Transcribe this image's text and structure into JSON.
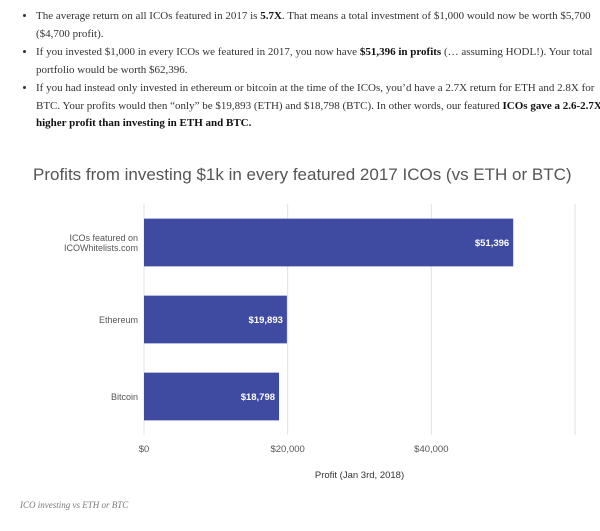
{
  "bullets": [
    {
      "segments": [
        {
          "text": "The average return on all ICOs featured in 2017 is ",
          "bold": false
        },
        {
          "text": "5.7X",
          "bold": true
        },
        {
          "text": ". That means a total investment of $1,000 would now be worth $5,700 ($4,700 profit).",
          "bold": false
        }
      ]
    },
    {
      "segments": [
        {
          "text": "If you invested $1,000 in every ICOs we featured in 2017, you now have ",
          "bold": false
        },
        {
          "text": "$51,396 in profits",
          "bold": true
        },
        {
          "text": " (… assuming HODL!). Your total portfolio would be worth $62,396.",
          "bold": false
        }
      ]
    },
    {
      "segments": [
        {
          "text": "If you had instead only invested in ethereum or bitcoin at the time of the ICOs, you’d have a 2.7X return for ETH and 2.8X for BTC. Your profits would then “only” be $19,893 (ETH) and $18,798 (BTC). In other words, our featured ",
          "bold": false
        },
        {
          "text": "ICOs gave a 2.6-2.7X higher profit than investing in ETH and BTC.",
          "bold": true
        }
      ]
    }
  ],
  "chart_data": {
    "type": "bar",
    "orientation": "horizontal",
    "title": "Profits from investing $1k in every featured 2017 ICOs (vs ETH or BTC)",
    "categories": [
      [
        "ICOs featured on",
        "ICOWhitelists.com"
      ],
      [
        "Ethereum"
      ],
      [
        "Bitcoin"
      ]
    ],
    "values": [
      51396,
      19893,
      18798
    ],
    "value_labels": [
      "$51,396",
      "$19,893",
      "$18,798"
    ],
    "xlabel": "Profit (Jan 3rd, 2018)",
    "xlim": [
      0,
      60000
    ],
    "xticks": [
      0,
      20000,
      40000
    ],
    "xtick_labels": [
      "$0",
      "$20,000",
      "$40,000"
    ],
    "grid": true,
    "bar_color": "#3f4ba1",
    "grid_color": "#e2e2e2"
  },
  "caption": "ICO investing vs ETH or BTC"
}
